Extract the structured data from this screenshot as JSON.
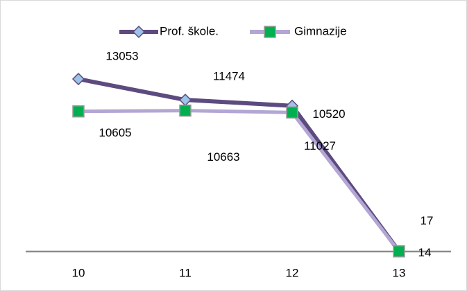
{
  "chart_data": {
    "type": "line",
    "categories": [
      "10",
      "11",
      "12",
      "13"
    ],
    "series": [
      {
        "name": "Prof. škole.",
        "color": "#5d4b80",
        "marker_color": "#9dc3e6",
        "values": [
          13053,
          11474,
          11027,
          17
        ]
      },
      {
        "name": "Gimnazije",
        "color": "#b3a6d4",
        "marker_color": "#00b050",
        "values": [
          10605,
          10663,
          10520,
          14
        ]
      }
    ],
    "ylim": [
      0,
      14000
    ],
    "legend": "top"
  }
}
